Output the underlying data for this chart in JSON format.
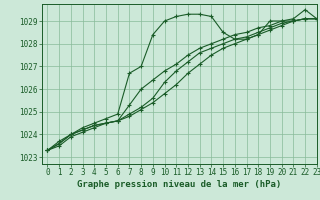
{
  "xlabel": "Graphe pression niveau de la mer (hPa)",
  "xlim": [
    -0.5,
    23
  ],
  "ylim": [
    1022.7,
    1029.75
  ],
  "yticks": [
    1023,
    1024,
    1025,
    1026,
    1027,
    1028,
    1029
  ],
  "xticks": [
    0,
    1,
    2,
    3,
    4,
    5,
    6,
    7,
    8,
    9,
    10,
    11,
    12,
    13,
    14,
    15,
    16,
    17,
    18,
    19,
    20,
    21,
    22,
    23
  ],
  "bg_color": "#cce8d8",
  "grid_color": "#88bb99",
  "line_color": "#1a5c28",
  "line1_y": [
    1023.3,
    1023.7,
    1024.0,
    1024.3,
    1024.5,
    1024.7,
    1024.9,
    1026.7,
    1027.0,
    1028.4,
    1029.0,
    1029.2,
    1029.3,
    1029.3,
    1029.2,
    1028.5,
    1028.2,
    1028.2,
    1028.4,
    1029.0,
    1029.0,
    1029.1,
    1029.5,
    1029.1
  ],
  "line2_y": [
    1023.3,
    1023.6,
    1024.0,
    1024.2,
    1024.4,
    1024.5,
    1024.6,
    1025.3,
    1026.0,
    1026.4,
    1026.8,
    1027.1,
    1027.5,
    1027.8,
    1028.0,
    1028.2,
    1028.4,
    1028.5,
    1028.7,
    1028.8,
    1029.0,
    1029.0,
    1029.1,
    1029.1
  ],
  "line3_y": [
    1023.3,
    1023.6,
    1024.0,
    1024.2,
    1024.4,
    1024.5,
    1024.6,
    1024.9,
    1025.2,
    1025.6,
    1026.3,
    1026.8,
    1027.2,
    1027.6,
    1027.8,
    1028.0,
    1028.2,
    1028.3,
    1028.5,
    1028.7,
    1028.9,
    1029.0,
    1029.1,
    1029.1
  ],
  "line4_y": [
    1023.3,
    1023.5,
    1023.9,
    1024.1,
    1024.3,
    1024.5,
    1024.6,
    1024.8,
    1025.1,
    1025.4,
    1025.8,
    1026.2,
    1026.7,
    1027.1,
    1027.5,
    1027.8,
    1028.0,
    1028.2,
    1028.4,
    1028.6,
    1028.8,
    1029.0,
    1029.1,
    1029.1
  ],
  "markersize": 3,
  "linewidth": 0.8,
  "tick_fontsize": 5.5,
  "label_fontsize": 6.5
}
